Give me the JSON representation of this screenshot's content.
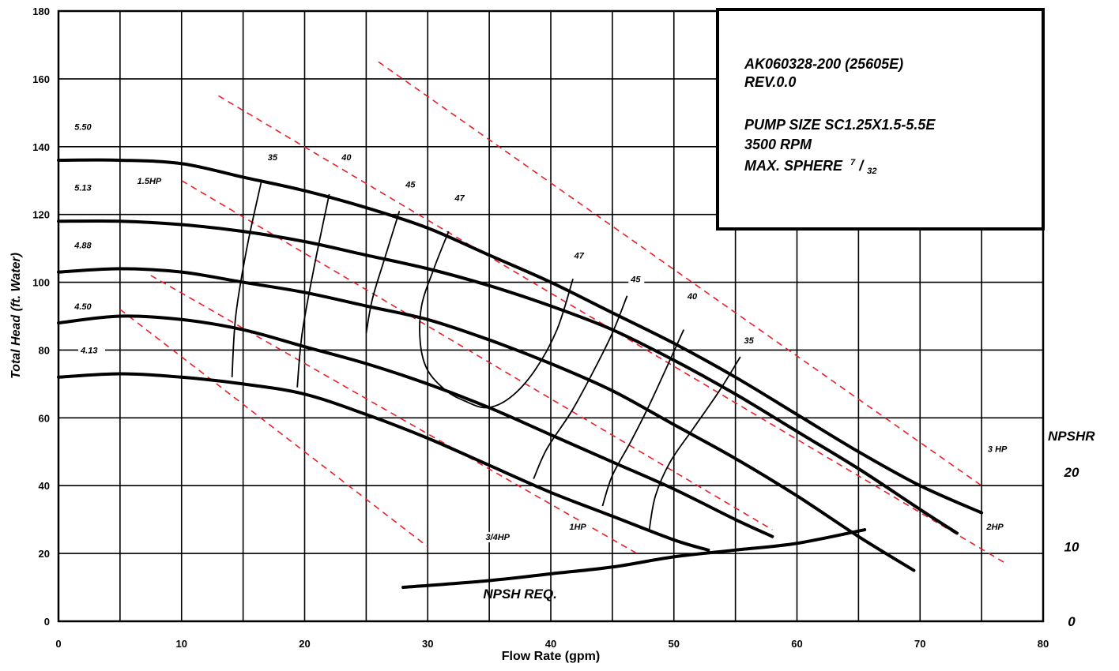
{
  "chart_data": {
    "type": "line",
    "xlabel": "Flow Rate (gpm)",
    "ylabel": "Total Head (ft. Water)",
    "xlim": [
      0,
      80
    ],
    "ylim": [
      0,
      180
    ],
    "x_ticks": [
      0,
      10,
      20,
      30,
      40,
      50,
      60,
      70,
      80
    ],
    "y_ticks": [
      0,
      20,
      40,
      60,
      80,
      100,
      120,
      140,
      160,
      180
    ],
    "grid": true,
    "info_box": {
      "line1": "AK060328-200 (25605E)",
      "line2": "REV.0.0",
      "line3": "PUMP SIZE  SC1.25X1.5-5.5E",
      "line4": "3500 RPM",
      "line5": "MAX. SPHERE",
      "sphere_num": "7",
      "sphere_den": "32"
    },
    "head_curves": [
      {
        "name": "5.13",
        "x": [
          0,
          5,
          10,
          15,
          20,
          25,
          30,
          35,
          40,
          45,
          50,
          55,
          60,
          65,
          70,
          75
        ],
        "y": [
          136,
          136,
          135,
          131,
          127,
          122,
          116,
          108,
          100,
          91,
          82,
          72,
          61,
          50,
          40,
          32
        ]
      },
      {
        "name": "4.88",
        "x": [
          0,
          5,
          10,
          15,
          20,
          25,
          30,
          35,
          40,
          45,
          50,
          55,
          60,
          65,
          70,
          73
        ],
        "y": [
          118,
          118,
          117,
          115,
          112,
          108,
          104,
          99,
          93,
          86,
          77,
          67,
          56,
          45,
          33,
          26
        ]
      },
      {
        "name": "4.50",
        "x": [
          0,
          5,
          10,
          15,
          20,
          25,
          30,
          35,
          40,
          45,
          50,
          55,
          60,
          65,
          69.5
        ],
        "y": [
          103,
          104,
          103,
          100,
          97,
          93,
          89,
          83,
          76,
          68,
          58,
          48,
          37,
          25,
          15
        ]
      },
      {
        "name": "4.13",
        "x": [
          0,
          5,
          10,
          15,
          20,
          25,
          30,
          35,
          40,
          45,
          50,
          55,
          58
        ],
        "y": [
          88,
          90,
          89,
          86,
          81,
          76,
          70,
          63,
          55,
          47,
          39,
          30,
          25
        ]
      },
      {
        "name": "",
        "x": [
          0,
          5,
          10,
          15,
          20,
          25,
          30,
          35,
          40,
          45,
          50,
          52.8
        ],
        "y": [
          72,
          73,
          72,
          70,
          67,
          61,
          54,
          46,
          38,
          31,
          24,
          21
        ]
      }
    ],
    "diameter_labels": [
      {
        "text": "5.50",
        "x": 1.3,
        "y": 145
      },
      {
        "text": "5.13",
        "x": 1.3,
        "y": 127
      },
      {
        "text": "4.88",
        "x": 1.3,
        "y": 110
      },
      {
        "text": "4.50",
        "x": 1.3,
        "y": 92
      },
      {
        "text": "4.13",
        "x": 1.8,
        "y": 79
      }
    ],
    "efficiency_curves": [
      {
        "name": "35",
        "x": [
          16.5,
          15.3,
          14.4,
          14.1
        ],
        "y": [
          130,
          110,
          90,
          72
        ]
      },
      {
        "name": "40",
        "x": [
          22,
          20.8,
          19.8,
          19.4
        ],
        "y": [
          126,
          105,
          85,
          69
        ]
      },
      {
        "name": "45",
        "x": [
          27.7,
          26.5,
          25.5,
          25.0
        ],
        "y": [
          121,
          107,
          95,
          85
        ]
      },
      {
        "name": "47",
        "x": [
          31.7,
          30.5,
          29.5,
          29.4,
          30.0,
          31.5,
          33.0,
          34.8,
          36.7,
          38.7,
          40.5,
          41.8
        ],
        "y": [
          115,
          104,
          93,
          82,
          74,
          68,
          65,
          63,
          66,
          74,
          86,
          101
        ]
      },
      {
        "name": "45",
        "x": [
          46.2,
          45.0,
          43.5,
          41.7,
          39.7,
          38.6
        ],
        "y": [
          96,
          85,
          74,
          62,
          51,
          42
        ]
      },
      {
        "name": "40",
        "x": [
          50.8,
          49.3,
          47.9,
          46.5,
          45.0,
          44.2
        ],
        "y": [
          86,
          74,
          63,
          53,
          43,
          34
        ]
      },
      {
        "name": "35",
        "x": [
          55.4,
          53.7,
          51.6,
          49.7,
          48.5,
          48.0
        ],
        "y": [
          78,
          68,
          57,
          47,
          37,
          27
        ]
      }
    ],
    "efficiency_labels": [
      {
        "text": "35",
        "x": 17,
        "y": 136
      },
      {
        "text": "40",
        "x": 23,
        "y": 136
      },
      {
        "text": "45",
        "x": 28.2,
        "y": 128
      },
      {
        "text": "47",
        "x": 32.2,
        "y": 124
      },
      {
        "text": "47",
        "x": 41.9,
        "y": 107
      },
      {
        "text": "45",
        "x": 46.5,
        "y": 100
      },
      {
        "text": "40",
        "x": 51.1,
        "y": 95
      },
      {
        "text": "35",
        "x": 55.7,
        "y": 82
      }
    ],
    "hp_lines": [
      {
        "name": "3/4HP",
        "x": [
          5,
          30
        ],
        "y": [
          92,
          22
        ]
      },
      {
        "name": "1HP",
        "x": [
          7.5,
          47
        ],
        "y": [
          102,
          20
        ]
      },
      {
        "name": "1.5HP",
        "x": [
          10,
          58
        ],
        "y": [
          130,
          27
        ]
      },
      {
        "name": "2HP",
        "x": [
          13,
          77
        ],
        "y": [
          155,
          17
        ]
      },
      {
        "name": "3 HP",
        "x": [
          26,
          75
        ],
        "y": [
          165,
          40
        ]
      }
    ],
    "hp_labels": [
      {
        "text": "3/4HP",
        "x": 34.7,
        "y": 24
      },
      {
        "text": "1HP",
        "x": 41.5,
        "y": 27
      },
      {
        "text": "1.5HP",
        "x": 6.4,
        "y": 129
      },
      {
        "text": "2HP",
        "x": 75.4,
        "y": 27
      },
      {
        "text": "3 HP",
        "x": 75.5,
        "y": 50
      }
    ],
    "npsh_curve": {
      "name": "NPSH REQ.",
      "x": [
        28,
        35,
        40,
        45,
        50,
        55,
        60,
        65.5
      ],
      "y": [
        10,
        12,
        14,
        16,
        19,
        21,
        23,
        27
      ]
    },
    "npsh_axis": {
      "title": "NPSHR",
      "ticks": [
        "20",
        "10",
        "0"
      ],
      "tick_head_values": [
        44,
        22,
        0
      ]
    }
  }
}
